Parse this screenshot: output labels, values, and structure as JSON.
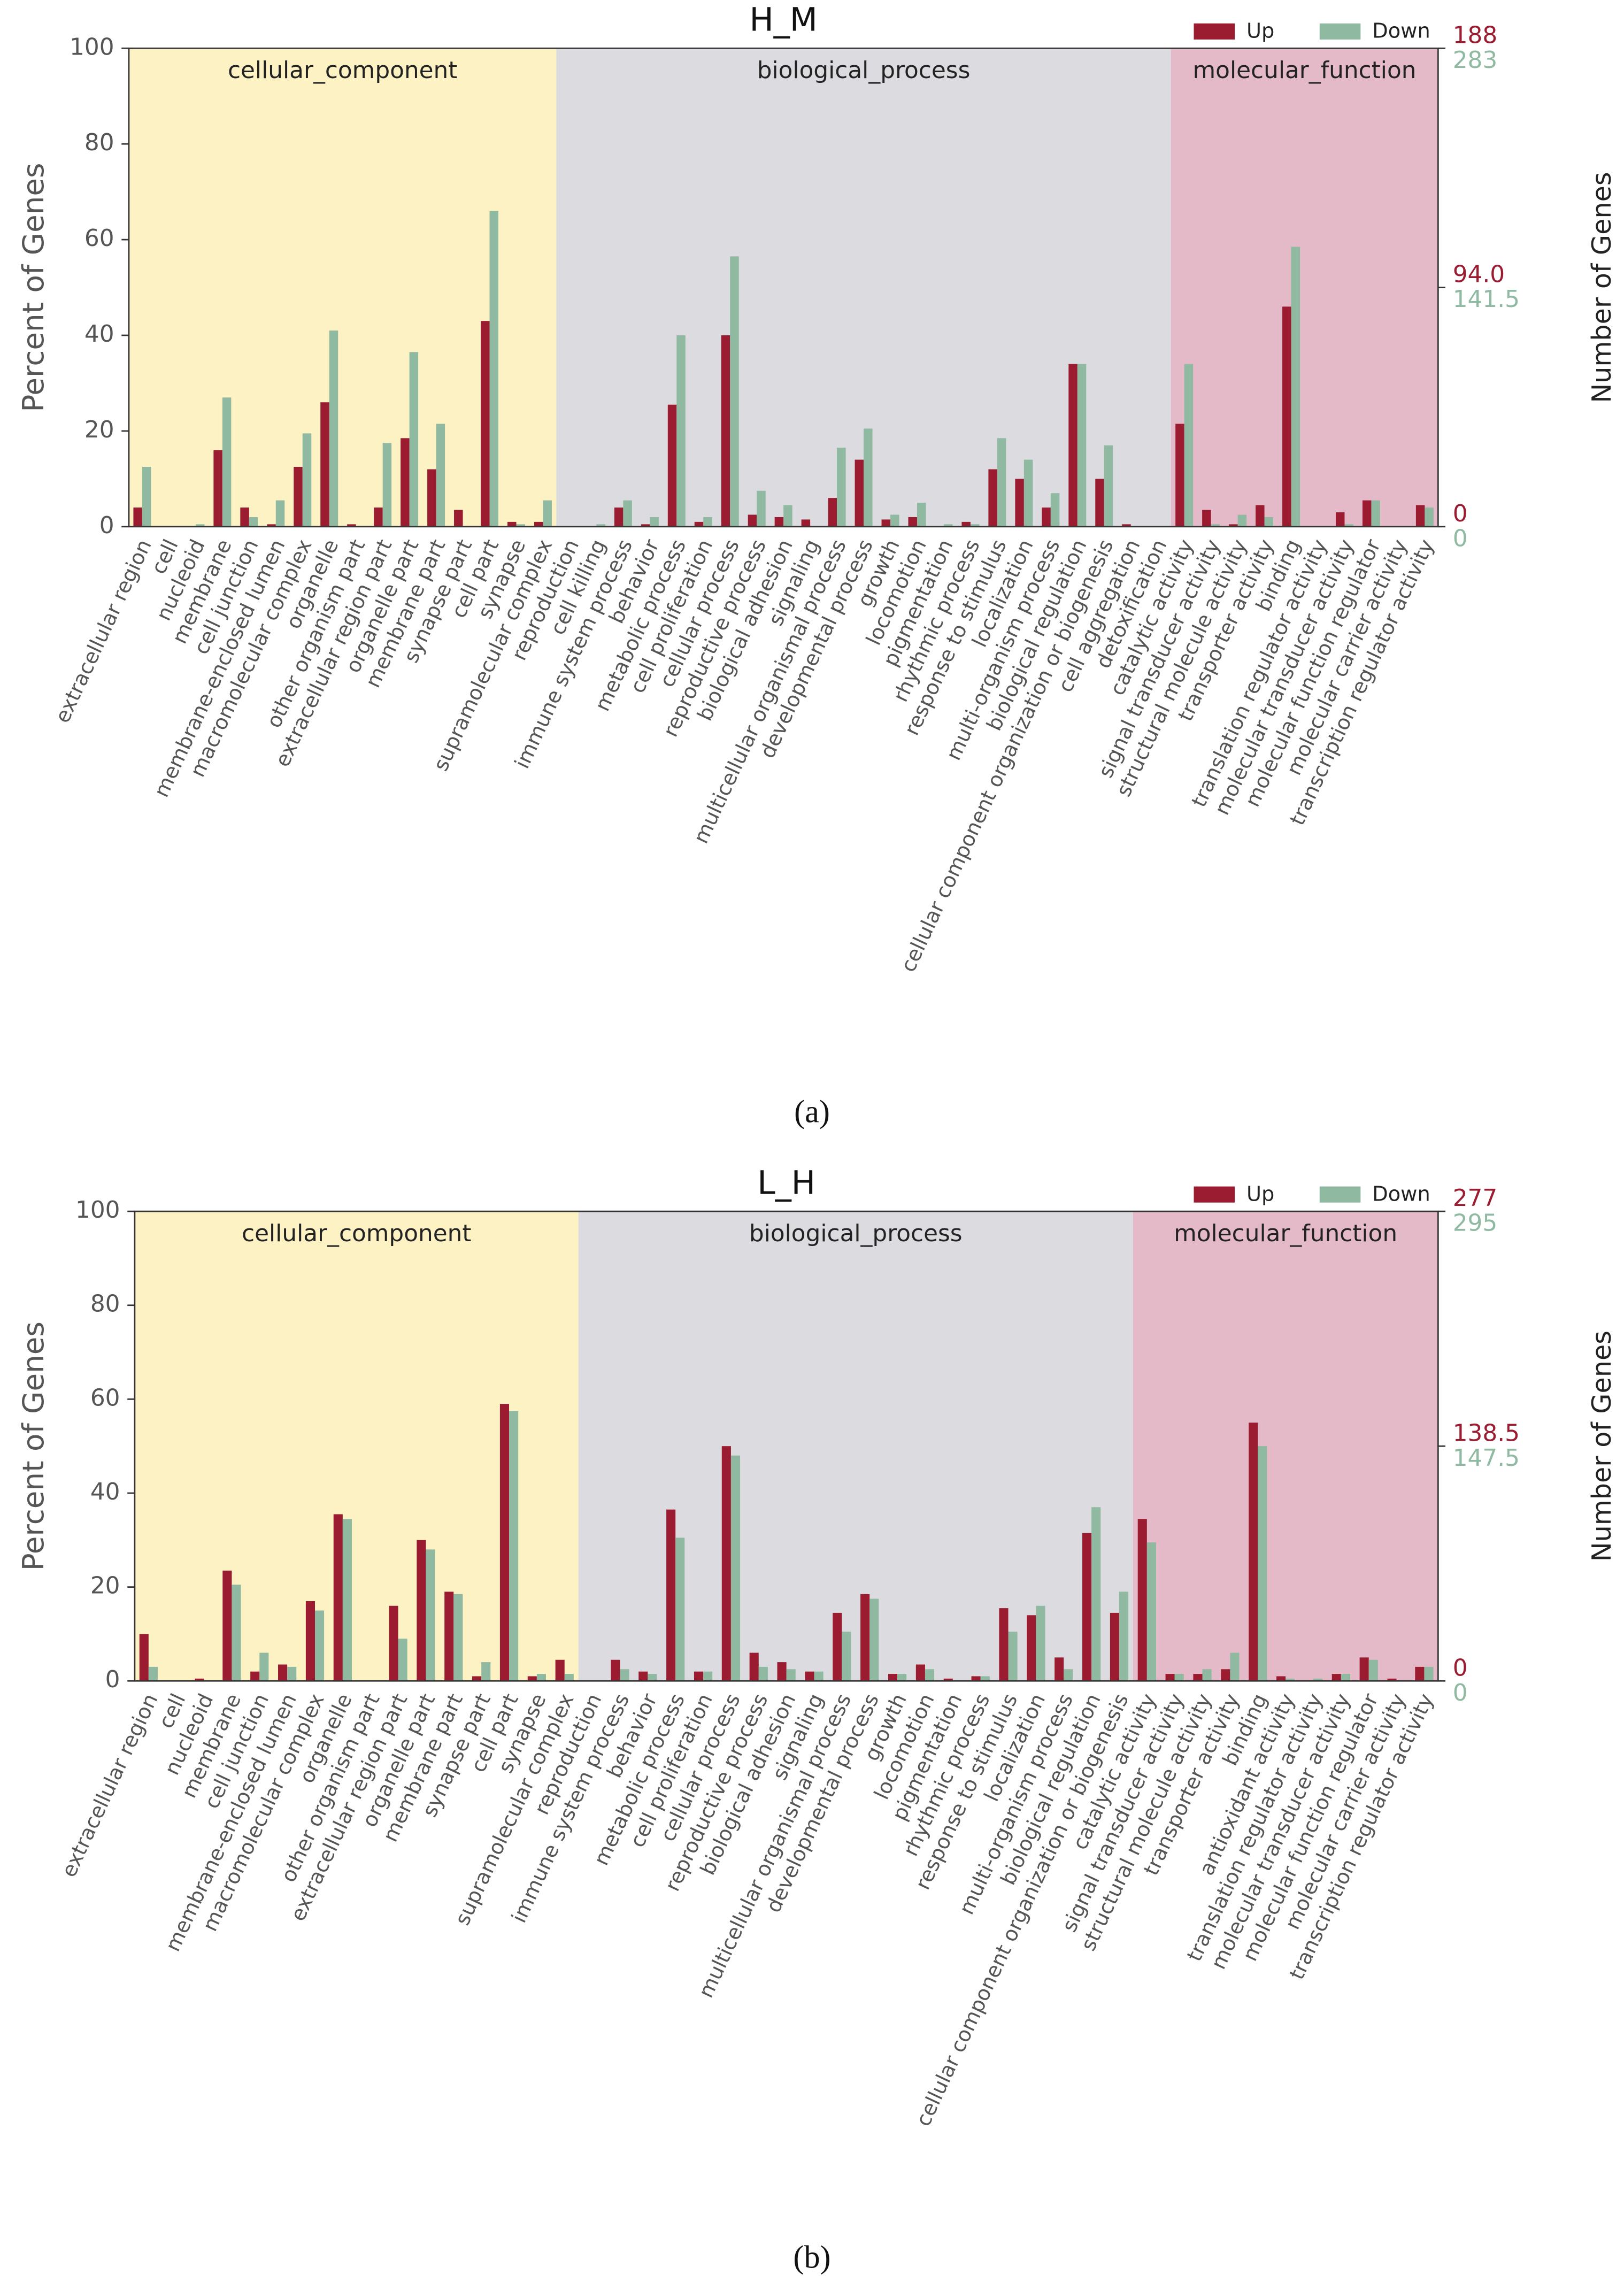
{
  "chart_data": [
    {
      "type": "bar",
      "title": "H_M",
      "caption": "(a)",
      "ylabel": "Percent of Genes",
      "y2label": "Number of Genes",
      "ylim": [
        0,
        100
      ],
      "yticks": [
        0,
        20,
        40,
        60,
        80,
        100
      ],
      "groups": [
        {
          "name": "cellular_component",
          "count": 16,
          "color": "#fdf2c4"
        },
        {
          "name": "biological_process",
          "count": 23,
          "color": "#dcdbe0"
        },
        {
          "name": "molecular_function",
          "count": 10,
          "color": "#e4bac8"
        }
      ],
      "categories": [
        "extracellular region",
        "cell",
        "nucleoid",
        "membrane",
        "cell junction",
        "membrane-enclosed lumen",
        "macromolecular complex",
        "organelle",
        "other organism part",
        "extracellular region part",
        "organelle part",
        "membrane part",
        "synapse part",
        "cell part",
        "synapse",
        "supramolecular complex",
        "reproduction",
        "cell killing",
        "immune system process",
        "behavior",
        "metabolic process",
        "cell proliferation",
        "cellular process",
        "reproductive process",
        "biological adhesion",
        "signaling",
        "multicellular organismal process",
        "developmental process",
        "growth",
        "locomotion",
        "pigmentation",
        "rhythmic process",
        "response to stimulus",
        "localization",
        "multi-organism process",
        "biological regulation",
        "cellular component organization or biogenesis",
        "cell aggregation",
        "detoxification",
        "catalytic activity",
        "signal transducer activity",
        "structural molecule activity",
        "transporter activity",
        "binding",
        "translation regulator activity",
        "molecular transducer activity",
        "molecular function regulator",
        "molecular carrier activity",
        "transcription regulator activity"
      ],
      "series": [
        {
          "name": "Up",
          "color": "#9b1b30",
          "y2lim": [
            0,
            188
          ],
          "y2ticks": [
            0,
            {
              "value": 94,
              "label": "94.0"
            },
            188
          ],
          "values": [
            4,
            0,
            0,
            16,
            4,
            0.5,
            12.5,
            26,
            0.5,
            4,
            18.5,
            12,
            3.5,
            43,
            1,
            1,
            0,
            0,
            4,
            0.5,
            25.5,
            1,
            40,
            2.5,
            2,
            1.5,
            6,
            14,
            1.5,
            2,
            0,
            1,
            12,
            10,
            4,
            34,
            10,
            0.5,
            0,
            21.5,
            3.5,
            0.5,
            4.5,
            46,
            0,
            3,
            5.5,
            0,
            4.5
          ]
        },
        {
          "name": "Down",
          "color": "#8fb9a0",
          "y2lim": [
            0,
            283
          ],
          "y2ticks": [
            0,
            141.5,
            283
          ],
          "values": [
            12.5,
            0,
            0.5,
            27,
            2,
            5.5,
            19.5,
            41,
            0,
            17.5,
            36.5,
            21.5,
            0,
            66,
            0.5,
            5.5,
            0,
            0.5,
            5.5,
            2,
            40,
            2,
            56.5,
            7.5,
            4.5,
            0,
            16.5,
            20.5,
            2.5,
            5,
            0.5,
            0.5,
            18.5,
            14,
            7,
            34,
            17,
            0,
            0,
            34,
            0.5,
            2.5,
            2,
            58.5,
            0,
            0.5,
            5.5,
            0,
            4
          ]
        }
      ]
    },
    {
      "type": "bar",
      "title": "L_H",
      "caption": "(b)",
      "ylabel": "Percent of Genes",
      "y2label": "Number of Genes",
      "ylim": [
        0,
        100
      ],
      "yticks": [
        0,
        20,
        40,
        60,
        80,
        100
      ],
      "groups": [
        {
          "name": "cellular_component",
          "count": 16,
          "color": "#fdf2c4"
        },
        {
          "name": "biological_process",
          "count": 20,
          "color": "#dcdbe0"
        },
        {
          "name": "molecular_function",
          "count": 11,
          "color": "#e4bac8"
        }
      ],
      "categories": [
        "extracellular region",
        "cell",
        "nucleoid",
        "membrane",
        "cell junction",
        "membrane-enclosed lumen",
        "macromolecular complex",
        "organelle",
        "other organism part",
        "extracellular region part",
        "organelle part",
        "membrane part",
        "synapse part",
        "cell part",
        "synapse",
        "supramolecular complex",
        "reproduction",
        "immune system process",
        "behavior",
        "metabolic process",
        "cell proliferation",
        "cellular process",
        "reproductive process",
        "biological adhesion",
        "signaling",
        "multicellular organismal process",
        "developmental process",
        "growth",
        "locomotion",
        "pigmentation",
        "rhythmic process",
        "response to stimulus",
        "localization",
        "multi-organism process",
        "biological regulation",
        "cellular component organization or biogenesis",
        "catalytic activity",
        "signal transducer activity",
        "structural molecule activity",
        "transporter activity",
        "binding",
        "antioxidant activity",
        "translation regulator activity",
        "molecular transducer activity",
        "molecular function regulator",
        "molecular carrier activity",
        "transcription regulator activity"
      ],
      "series": [
        {
          "name": "Up",
          "color": "#9b1b30",
          "y2lim": [
            0,
            277
          ],
          "y2ticks": [
            0,
            138.5,
            277
          ],
          "values": [
            10,
            0,
            0.5,
            23.5,
            2,
            3.5,
            17,
            35.5,
            0,
            16,
            30,
            19,
            1,
            59,
            1,
            4.5,
            0,
            4.5,
            2,
            36.5,
            2,
            50,
            6,
            4,
            2,
            14.5,
            18.5,
            1.5,
            3.5,
            0.5,
            1,
            15.5,
            14,
            5,
            31.5,
            14.5,
            34.5,
            1.5,
            1.5,
            2.5,
            55,
            1,
            0,
            1.5,
            5,
            0.5,
            3
          ]
        },
        {
          "name": "Down",
          "color": "#8fb9a0",
          "y2lim": [
            0,
            295
          ],
          "y2ticks": [
            0,
            147.5,
            295
          ],
          "values": [
            3,
            0,
            0,
            20.5,
            6,
            3,
            15,
            34.5,
            0,
            9,
            28,
            18.5,
            4,
            57.5,
            1.5,
            1.5,
            0,
            2.5,
            1.5,
            30.5,
            2,
            48,
            3,
            2.5,
            2,
            10.5,
            17.5,
            1.5,
            2.5,
            0,
            1,
            10.5,
            16,
            2.5,
            37,
            19,
            29.5,
            1.5,
            2.5,
            6,
            50,
            0.5,
            0.5,
            1.5,
            4.5,
            0,
            3
          ]
        }
      ]
    }
  ]
}
